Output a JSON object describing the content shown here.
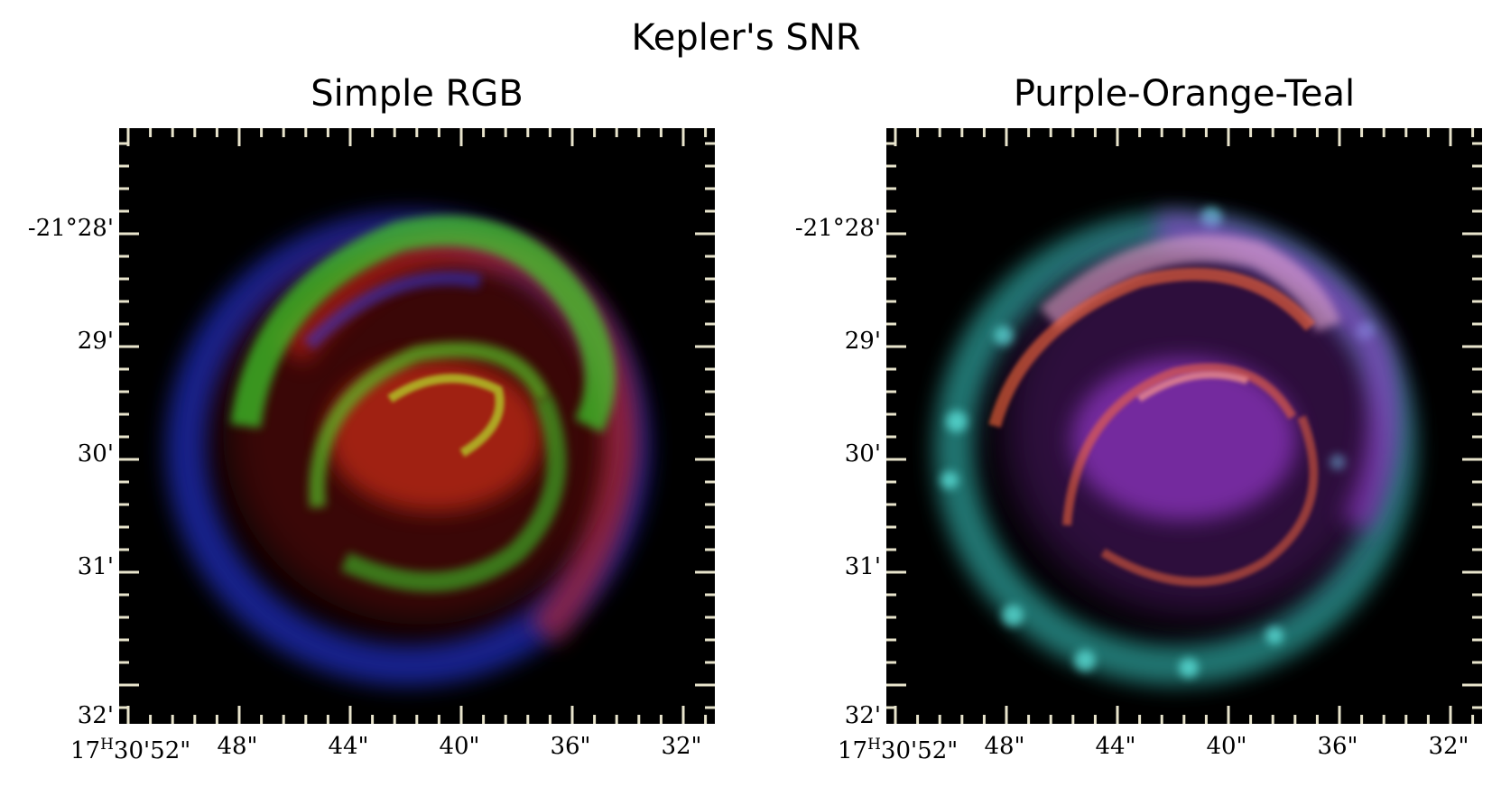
{
  "figure": {
    "title": "Kepler's SNR",
    "panels": [
      {
        "title": "Simple RGB",
        "colors": {
          "red": "#e0251a",
          "green": "#3cd22a",
          "blue": "#2a3cff"
        }
      },
      {
        "title": "Purple-Orange-Teal",
        "colors": {
          "purple": "#a43ee0",
          "orange": "#ff6a3a",
          "teal": "#3cd8d0"
        }
      }
    ],
    "dec_ticks": [
      "-21°28'",
      "29'",
      "30'",
      "31'",
      "32'"
    ],
    "ra_first": {
      "hours": "17",
      "unit": "H",
      "rest": "30'52\""
    },
    "ra_ticks": [
      "48\"",
      "44\"",
      "40\"",
      "36\"",
      "32\""
    ],
    "frame_color": "#e8e4cc"
  }
}
